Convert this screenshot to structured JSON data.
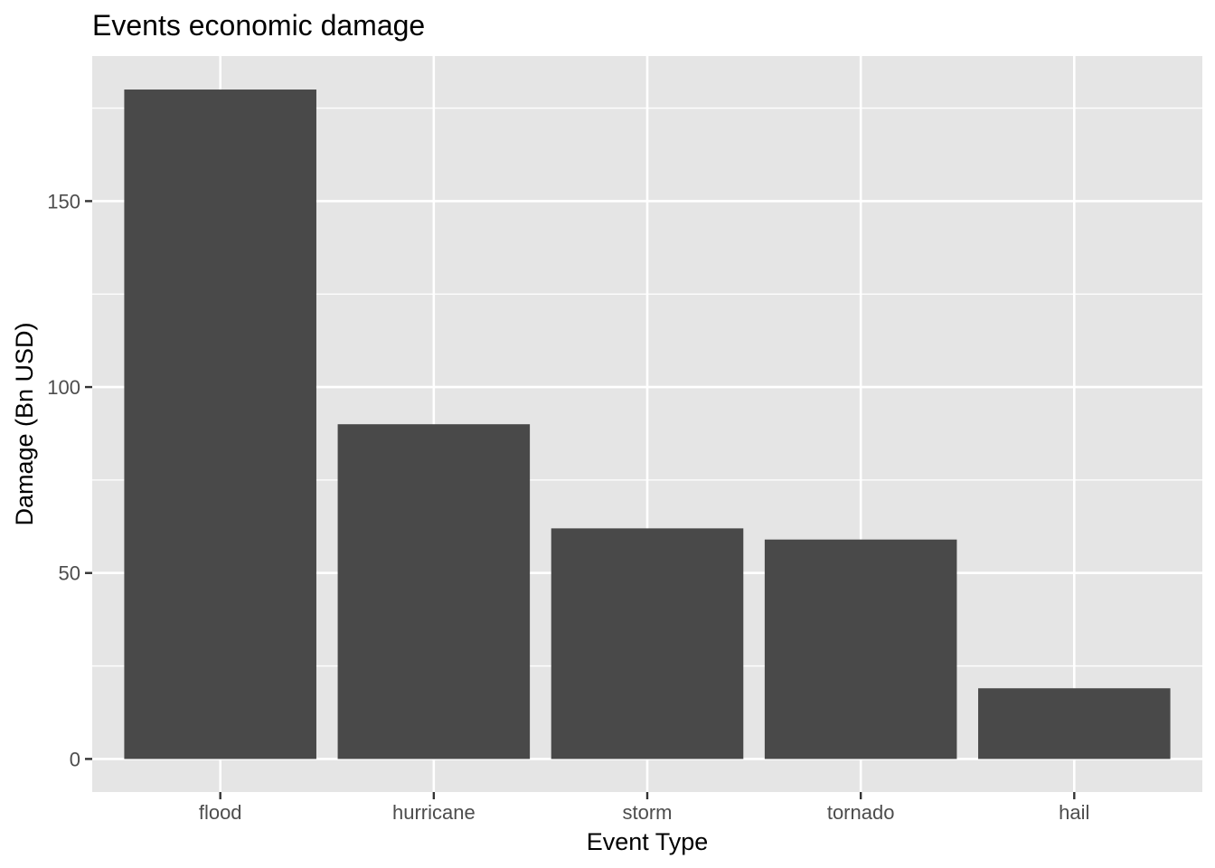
{
  "chart_data": {
    "type": "bar",
    "title": "Events economic damage",
    "xlabel": "Event Type",
    "ylabel": "Damage (Bn USD)",
    "categories": [
      "flood",
      "hurricane",
      "storm",
      "tornado",
      "hail"
    ],
    "values": [
      180,
      90,
      62,
      59,
      19
    ],
    "ylim": [
      -8.9,
      189
    ],
    "yticks": [
      0,
      50,
      100,
      150
    ],
    "yminor": [
      25,
      75,
      125,
      175
    ],
    "grid": true,
    "legend": "none",
    "colors": {
      "panel": "#e5e5e5",
      "bar": "#494949",
      "grid": "#ffffff",
      "tick": "#333333",
      "tick_label": "#4d4d4d"
    }
  }
}
